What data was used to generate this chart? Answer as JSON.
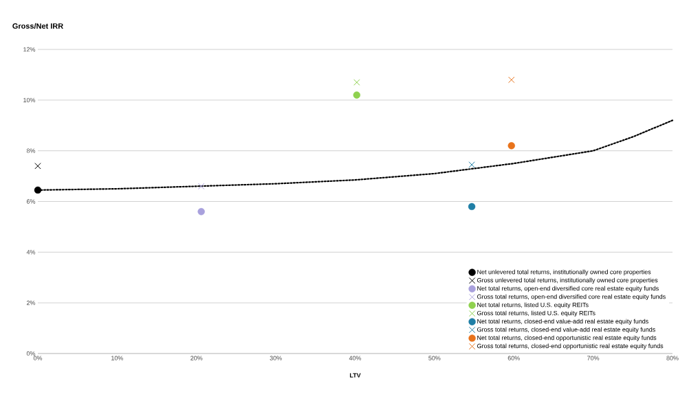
{
  "chart_data": {
    "type": "scatter",
    "xlabel": "LTV",
    "ylabel": "Gross/Net IRR",
    "xlim": [
      0,
      80
    ],
    "ylim": [
      0,
      12
    ],
    "xticks": [
      {
        "value": 0,
        "label": "0%"
      },
      {
        "value": 10,
        "label": "10%"
      },
      {
        "value": 20,
        "label": "20%"
      },
      {
        "value": 30,
        "label": "30%"
      },
      {
        "value": 40,
        "label": "40%"
      },
      {
        "value": 50,
        "label": "50%"
      },
      {
        "value": 60,
        "label": "60%"
      },
      {
        "value": 70,
        "label": "70%"
      },
      {
        "value": 80,
        "label": "80%"
      }
    ],
    "yticks": [
      {
        "value": 0,
        "label": "0%"
      },
      {
        "value": 2,
        "label": "2%"
      },
      {
        "value": 4,
        "label": "4%"
      },
      {
        "value": 6,
        "label": "6%"
      },
      {
        "value": 8,
        "label": "8%"
      },
      {
        "value": 10,
        "label": "10%"
      },
      {
        "value": 12,
        "label": "12%"
      }
    ],
    "grid": "y",
    "legend": "bottom right",
    "series": [
      {
        "type": "line",
        "color": "#000000",
        "line_style": "dotted",
        "marker": "none",
        "x": [
          0,
          10,
          20,
          30,
          40,
          50,
          55,
          60,
          65,
          70,
          75,
          80
        ],
        "values": [
          6.45,
          6.5,
          6.6,
          6.7,
          6.85,
          7.1,
          7.3,
          7.5,
          7.75,
          8.0,
          8.55,
          9.2
        ]
      },
      {
        "name": "Net unlevered total returns, institutionally owned core properties",
        "color": "#000000",
        "marker": "circle",
        "x": [
          0
        ],
        "values": [
          6.45
        ]
      },
      {
        "name": "Gross unlevered total returns, institutionally owned core properties",
        "color": "#000000",
        "marker": "cross",
        "x": [
          0
        ],
        "values": [
          7.4
        ]
      },
      {
        "name": "Net total returns, open-end diversified core real estate equity funds",
        "color": "#a9a1dd",
        "marker": "circle",
        "x": [
          20.6
        ],
        "values": [
          5.6
        ]
      },
      {
        "name": "Gross total returns, open-end diversified core real estate equity funds",
        "color": "#a9a1dd",
        "marker": "cross",
        "x": [
          20.6
        ],
        "values": [
          6.6
        ]
      },
      {
        "name": "Net total returns, listed U.S. equity REITs",
        "color": "#8fd14f",
        "marker": "circle",
        "x": [
          40.2
        ],
        "values": [
          10.2
        ]
      },
      {
        "name": "Gross total returns, listed U.S. equity REITs",
        "color": "#8fd14f",
        "marker": "cross",
        "x": [
          40.2
        ],
        "values": [
          10.7
        ]
      },
      {
        "name": "Net total returns, closed-end value-add real estate equity funds",
        "color": "#1f7fa6",
        "marker": "circle",
        "x": [
          54.7
        ],
        "values": [
          5.8
        ]
      },
      {
        "name": "Gross total returns, closed-end value-add real estate equity funds",
        "color": "#1f7fa6",
        "marker": "cross",
        "x": [
          54.7
        ],
        "values": [
          7.45
        ]
      },
      {
        "name": "Net total returns, closed-end opportunistic real estate equity funds",
        "color": "#e8731c",
        "marker": "circle",
        "x": [
          59.7
        ],
        "values": [
          8.2
        ]
      },
      {
        "name": "Gross total returns, closed-end opportunistic real estate equity funds",
        "color": "#e8731c",
        "marker": "cross",
        "x": [
          59.7
        ],
        "values": [
          10.8
        ]
      }
    ]
  }
}
